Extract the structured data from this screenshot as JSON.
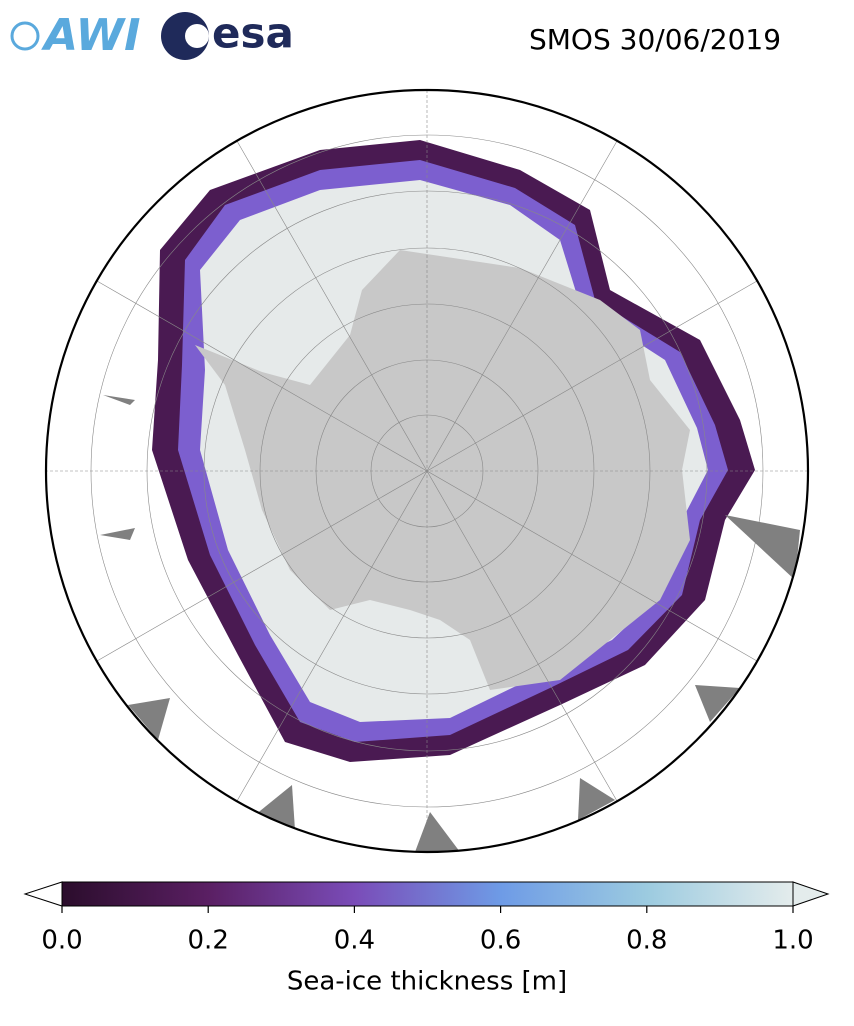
{
  "header": {
    "logos": [
      "AWI",
      "esa"
    ],
    "title": "SMOS 30/06/2019"
  },
  "colorbar": {
    "label": "Sea-ice thickness [m]",
    "lim": [
      0,
      1
    ],
    "ticks": [
      {
        "value": 0,
        "label": "0.0"
      },
      {
        "value": 0.2,
        "label": "0.2"
      },
      {
        "value": 0.4,
        "label": "0.4"
      },
      {
        "value": 0.6,
        "label": "0.6"
      },
      {
        "value": 0.8,
        "label": "0.8"
      },
      {
        "value": 1,
        "label": "1.0"
      }
    ],
    "colors": [
      "#2b0d2c",
      "#5a1f63",
      "#7a4cb8",
      "#6e9be6",
      "#9ccbe0",
      "#e4ecec"
    ]
  }
}
